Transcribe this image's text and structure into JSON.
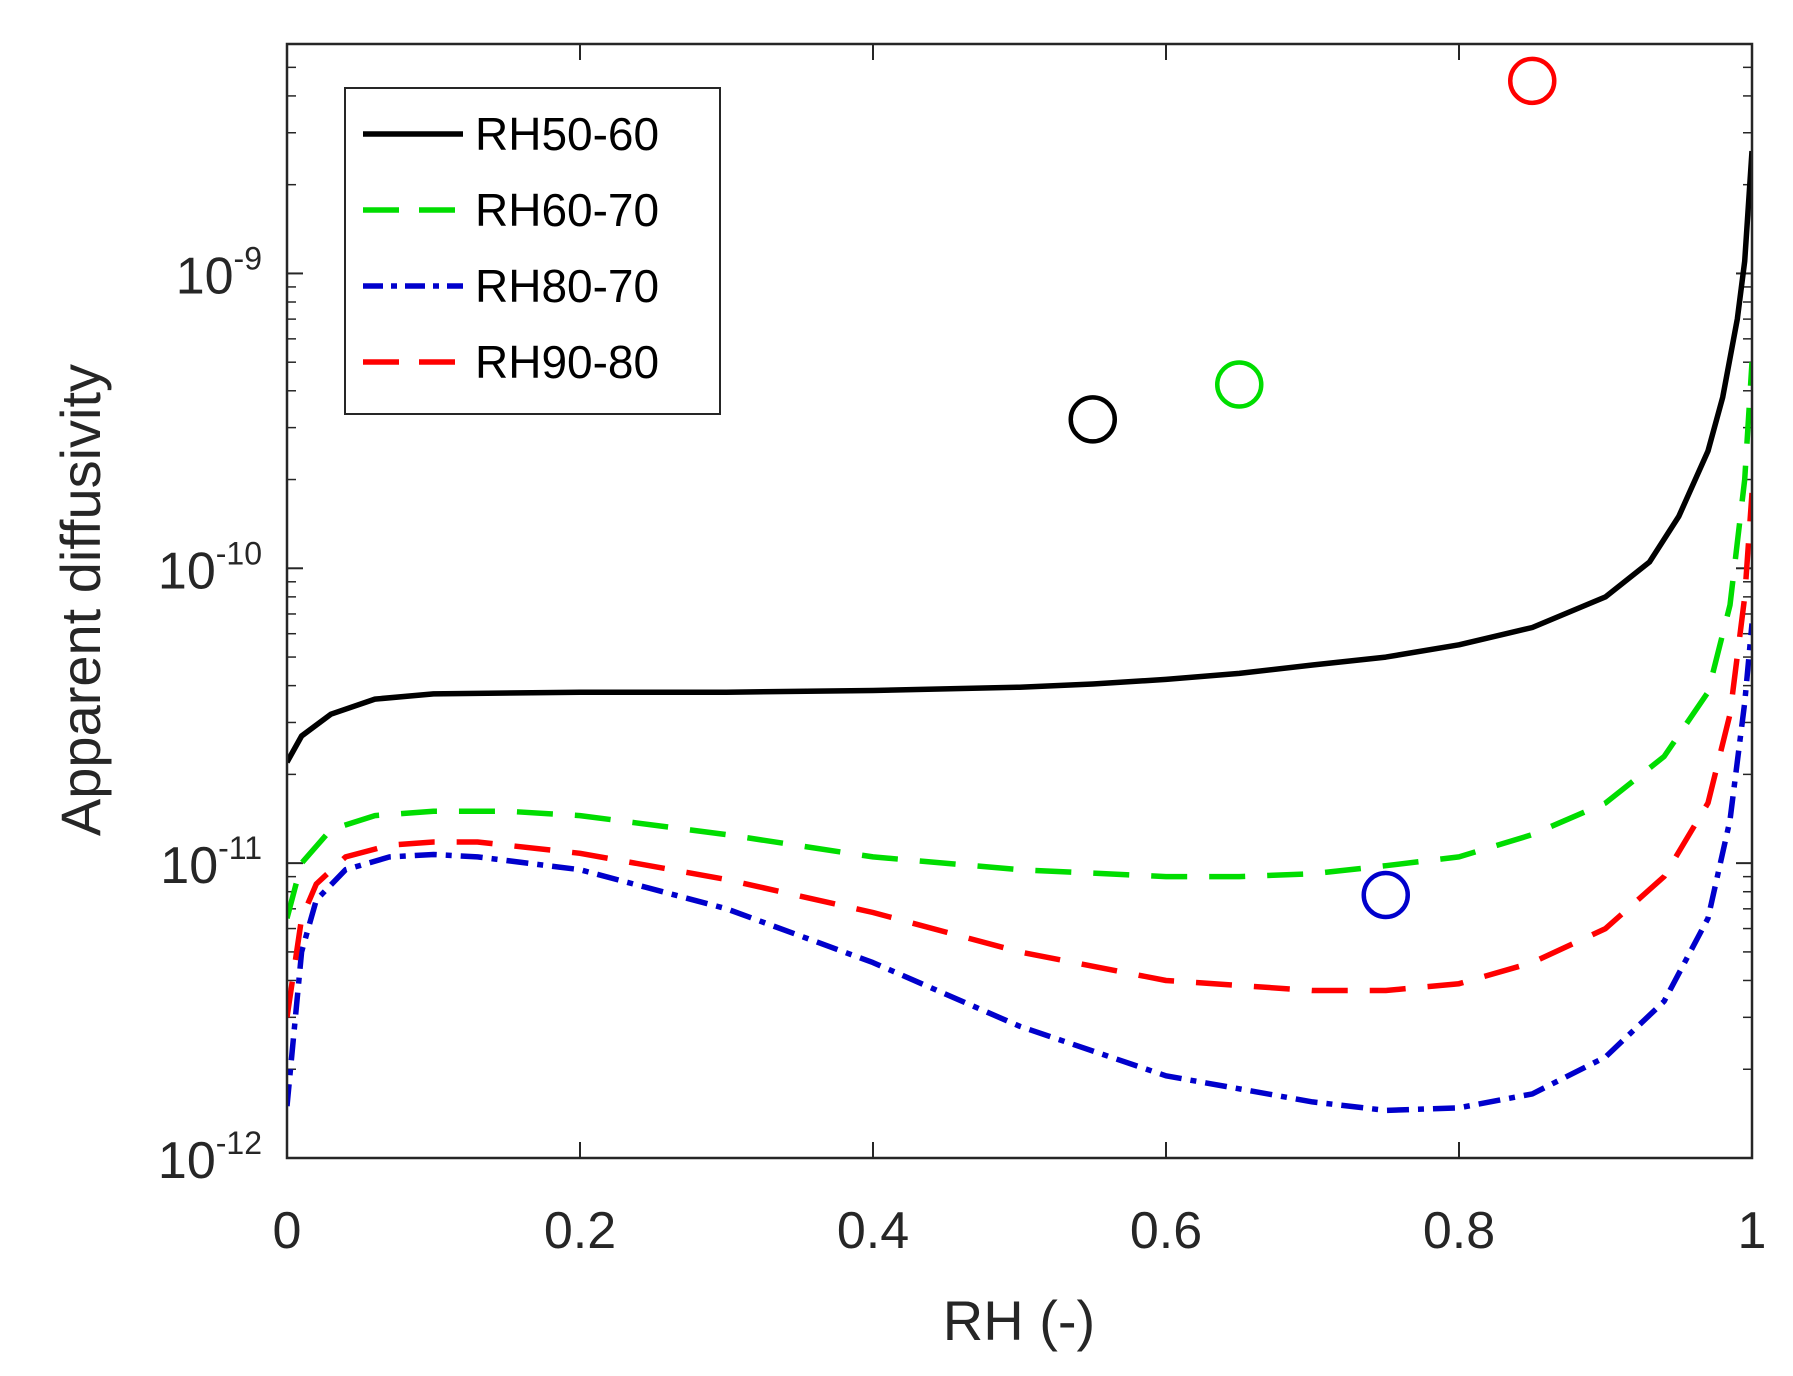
{
  "chart_data": {
    "type": "line",
    "title": "",
    "xlabel": "RH (-)",
    "ylabel": "Apparent diffusivity",
    "xlim": [
      0,
      1
    ],
    "ylim": [
      1e-12,
      6e-09
    ],
    "yscale": "log",
    "grid": false,
    "legend_position": "top-left",
    "x_ticks": [
      {
        "value": 0,
        "label": "0"
      },
      {
        "value": 0.2,
        "label": "0.2"
      },
      {
        "value": 0.4,
        "label": "0.4"
      },
      {
        "value": 0.6,
        "label": "0.6"
      },
      {
        "value": 0.8,
        "label": "0.8"
      },
      {
        "value": 1,
        "label": "1"
      }
    ],
    "y_ticks": [
      {
        "value": 1e-12,
        "base": "10",
        "exponent": "-12"
      },
      {
        "value": 1e-11,
        "base": "10",
        "exponent": "-11"
      },
      {
        "value": 1e-10,
        "base": "10",
        "exponent": "-10"
      },
      {
        "value": 1e-09,
        "base": "10",
        "exponent": "-9"
      }
    ],
    "series": [
      {
        "name": "RH50-60",
        "color": "#000000",
        "style": "solid",
        "x": [
          0,
          0.01,
          0.03,
          0.06,
          0.1,
          0.2,
          0.3,
          0.4,
          0.5,
          0.55,
          0.6,
          0.65,
          0.7,
          0.75,
          0.8,
          0.85,
          0.9,
          0.93,
          0.95,
          0.97,
          0.98,
          0.99,
          0.995,
          1.0
        ],
        "y": [
          2.2e-11,
          2.7e-11,
          3.2e-11,
          3.6e-11,
          3.75e-11,
          3.8e-11,
          3.8e-11,
          3.85e-11,
          3.95e-11,
          4.05e-11,
          4.2e-11,
          4.4e-11,
          4.7e-11,
          5e-11,
          5.5e-11,
          6.3e-11,
          8e-11,
          1.05e-10,
          1.5e-10,
          2.5e-10,
          3.8e-10,
          7e-10,
          1.1e-09,
          2.6e-09
        ]
      },
      {
        "name": "RH60-70",
        "color": "#00dd00",
        "style": "dashed",
        "x": [
          0,
          0.01,
          0.03,
          0.06,
          0.1,
          0.15,
          0.2,
          0.3,
          0.4,
          0.5,
          0.6,
          0.65,
          0.7,
          0.75,
          0.8,
          0.85,
          0.9,
          0.94,
          0.97,
          0.985,
          0.995,
          1.0
        ],
        "y": [
          6.5e-12,
          1e-11,
          1.3e-11,
          1.45e-11,
          1.5e-11,
          1.5e-11,
          1.45e-11,
          1.25e-11,
          1.05e-11,
          9.5e-12,
          9e-12,
          9e-12,
          9.2e-12,
          9.8e-12,
          1.05e-11,
          1.25e-11,
          1.6e-11,
          2.3e-11,
          3.8e-11,
          7.5e-11,
          2e-10,
          5e-10
        ]
      },
      {
        "name": "RH80-70",
        "color": "#0000cc",
        "style": "dash-dot",
        "x": [
          0,
          0.01,
          0.02,
          0.04,
          0.07,
          0.1,
          0.13,
          0.2,
          0.3,
          0.4,
          0.5,
          0.6,
          0.7,
          0.75,
          0.8,
          0.85,
          0.9,
          0.94,
          0.97,
          0.985,
          0.995,
          1.0
        ],
        "y": [
          1.5e-12,
          5e-12,
          7.5e-12,
          9.5e-12,
          1.05e-11,
          1.07e-11,
          1.05e-11,
          9.5e-12,
          7e-12,
          4.6e-12,
          2.8e-12,
          1.9e-12,
          1.55e-12,
          1.45e-12,
          1.48e-12,
          1.65e-12,
          2.2e-12,
          3.4e-12,
          6.5e-12,
          1.4e-11,
          3.5e-11,
          6.5e-11
        ]
      },
      {
        "name": "RH90-80",
        "color": "#ff0000",
        "style": "dashed",
        "x": [
          0,
          0.01,
          0.02,
          0.04,
          0.07,
          0.1,
          0.13,
          0.2,
          0.3,
          0.4,
          0.5,
          0.6,
          0.7,
          0.75,
          0.8,
          0.85,
          0.9,
          0.94,
          0.97,
          0.985,
          0.995,
          1.0
        ],
        "y": [
          3e-12,
          6.5e-12,
          8.5e-12,
          1.05e-11,
          1.15e-11,
          1.18e-11,
          1.18e-11,
          1.08e-11,
          8.8e-12,
          6.8e-12,
          5e-12,
          4e-12,
          3.7e-12,
          3.7e-12,
          3.9e-12,
          4.6e-12,
          6e-12,
          9e-12,
          1.6e-11,
          3.2e-11,
          8e-11,
          1.8e-10
        ]
      }
    ],
    "markers": [
      {
        "name": "RH50-60 measured",
        "x": 0.55,
        "y": 3.2e-10,
        "color": "#000000",
        "shape": "circle"
      },
      {
        "name": "RH60-70 measured",
        "x": 0.65,
        "y": 4.2e-10,
        "color": "#00dd00",
        "shape": "circle"
      },
      {
        "name": "RH80-70 measured",
        "x": 0.75,
        "y": 7.8e-12,
        "color": "#0000cc",
        "shape": "circle"
      },
      {
        "name": "RH90-80 measured",
        "x": 0.85,
        "y": 4.5e-09,
        "color": "#ff0000",
        "shape": "circle"
      }
    ]
  }
}
